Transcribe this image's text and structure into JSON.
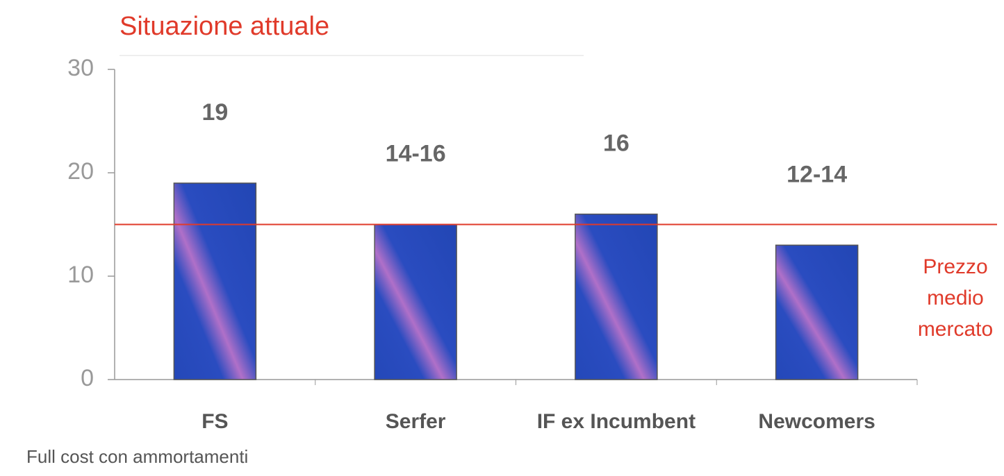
{
  "chart_data": {
    "type": "bar",
    "title": "Situazione attuale",
    "categories": [
      "FS",
      "Serfer",
      "IF ex Incumbent",
      "Newcomers"
    ],
    "values": [
      19,
      15,
      16,
      13
    ],
    "value_labels": [
      "19",
      "14-16",
      "16",
      "12-14"
    ],
    "color": "#2448b8",
    "ylim": [
      0,
      30
    ],
    "yticks": [
      0,
      10,
      20,
      30
    ],
    "reference_line": {
      "value": 15,
      "label": [
        "Prezzo",
        "medio",
        "mercato"
      ],
      "color": "#e03a2a"
    },
    "footnote": "Full cost con ammortamenti"
  }
}
